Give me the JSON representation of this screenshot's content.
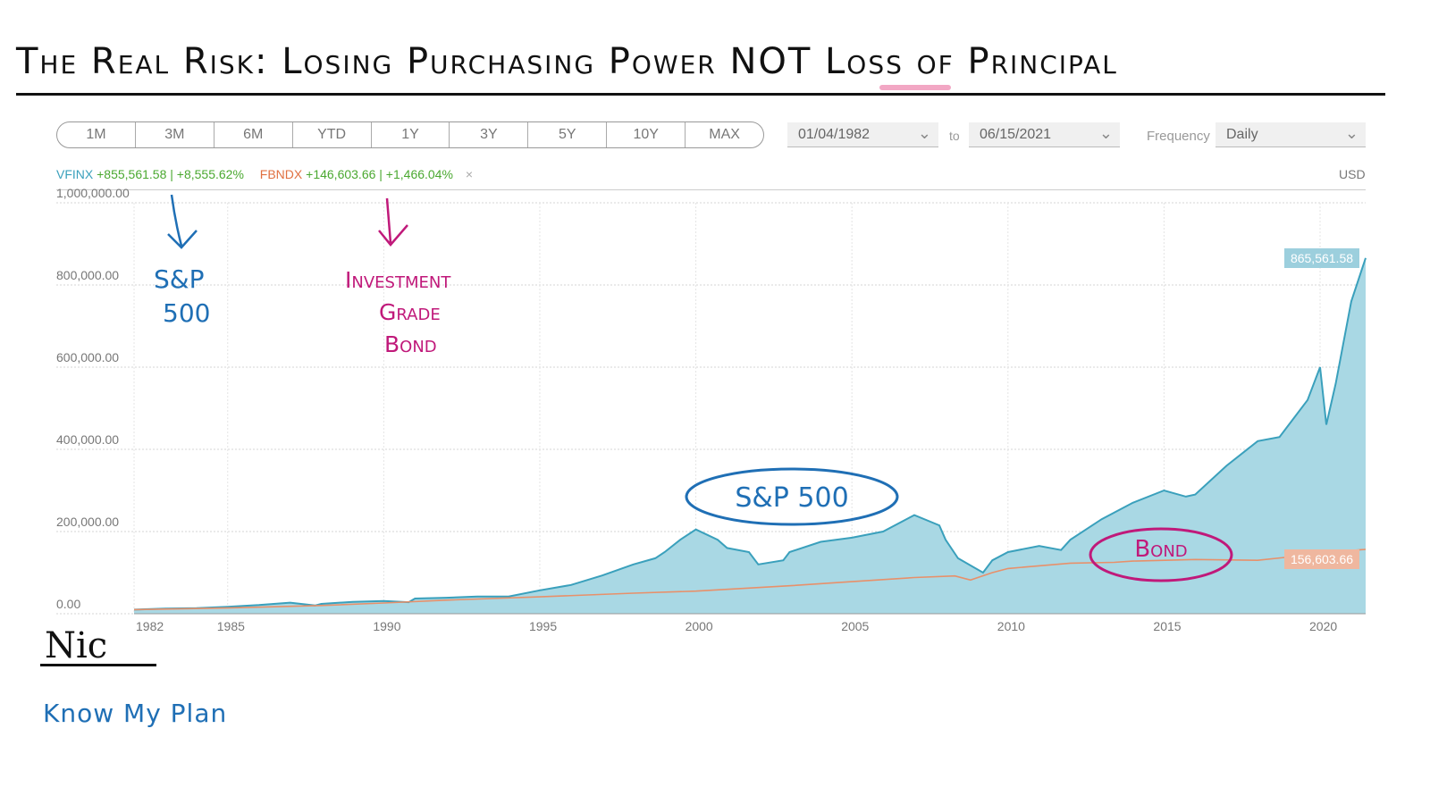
{
  "title": "The Real Risk: Losing Purchasing Power NOT Loss of Principal",
  "controls": {
    "ranges": [
      "1M",
      "3M",
      "6M",
      "YTD",
      "1Y",
      "3Y",
      "5Y",
      "10Y",
      "MAX"
    ],
    "start_date": "01/04/1982",
    "to_label": "to",
    "end_date": "06/15/2021",
    "frequency_label": "Frequency",
    "frequency_value": "Daily"
  },
  "legend": {
    "vfinx_name": "VFINX",
    "vfinx_change": "+855,561.58 | +8,555.62%",
    "fbndx_name": "FBNDX",
    "fbndx_change": "+146,603.66 | +1,466.04%",
    "close_symbol": "×",
    "currency": "USD"
  },
  "annotations": {
    "sp500_arrow_label_1": "S&P",
    "sp500_arrow_label_2": "500",
    "bond_arrow_label_1": "Investment",
    "bond_arrow_label_2": "Grade",
    "bond_arrow_label_3": "Bond",
    "sp500_circle": "S&P 500",
    "bond_circle": "Bond"
  },
  "author": "Nic",
  "brand": "Know My Plan",
  "colors": {
    "vfinx": "#3aa0bc",
    "vfinx_fill": "#a9d8e4",
    "fbndx": "#e8906a",
    "blue_ink": "#1f6fb5",
    "magenta_ink": "#c0197a"
  },
  "chart_data": {
    "type": "area",
    "xlim": [
      1982.0,
      2021.46
    ],
    "ylim": [
      0,
      1000000
    ],
    "y_ticks": [
      0,
      200000,
      400000,
      600000,
      800000,
      1000000
    ],
    "y_tick_labels": [
      "0.00",
      "200,000.00",
      "400,000.00",
      "600,000.00",
      "800,000.00",
      "1,000,000.00"
    ],
    "x_ticks": [
      1982,
      1985,
      1990,
      1995,
      2000,
      2005,
      2010,
      2015,
      2020
    ],
    "x_tick_labels": [
      "1982",
      "1985",
      "1990",
      "1995",
      "2000",
      "2005",
      "2010",
      "2015",
      "2020"
    ],
    "grid": true,
    "series": [
      {
        "name": "VFINX",
        "x": [
          1982,
          1983,
          1984,
          1985,
          1986,
          1987,
          1987.8,
          1988,
          1989,
          1990,
          1990.8,
          1991,
          1992,
          1993,
          1994,
          1995,
          1996,
          1997,
          1998,
          1998.7,
          1999,
          1999.5,
          2000,
          2000.7,
          2001,
          2001.7,
          2002,
          2002.8,
          2003,
          2004,
          2005,
          2006,
          2007,
          2007.8,
          2008,
          2008.4,
          2009.2,
          2009.5,
          2010,
          2011,
          2011.7,
          2012,
          2013,
          2014,
          2015,
          2015.7,
          2016,
          2017,
          2018,
          2018.7,
          2019,
          2019.6,
          2020,
          2020.2,
          2020.5,
          2021,
          2021.46
        ],
        "values": [
          10000,
          12500,
          13500,
          17000,
          21000,
          27000,
          20000,
          24000,
          29000,
          31000,
          28000,
          37000,
          39000,
          42000,
          42000,
          57000,
          70000,
          93000,
          120000,
          135000,
          150000,
          180000,
          205000,
          180000,
          160000,
          150000,
          120000,
          130000,
          150000,
          175000,
          185000,
          200000,
          240000,
          215000,
          180000,
          135000,
          100000,
          130000,
          150000,
          165000,
          155000,
          180000,
          230000,
          270000,
          300000,
          285000,
          290000,
          360000,
          420000,
          430000,
          460000,
          520000,
          600000,
          460000,
          560000,
          760000,
          865561.58
        ]
      },
      {
        "name": "FBNDX",
        "x": [
          1982,
          1985,
          1988,
          1990,
          1992,
          1995,
          1998,
          2000,
          2003,
          2005,
          2007,
          2008.3,
          2008.8,
          2009.5,
          2010,
          2012,
          2013.4,
          2014,
          2016,
          2018,
          2019,
          2020,
          2021.46
        ],
        "values": [
          10000,
          14000,
          20000,
          26000,
          33000,
          41000,
          50000,
          55000,
          68000,
          78000,
          88000,
          92000,
          82000,
          100000,
          110000,
          123000,
          125000,
          128000,
          132000,
          130000,
          138000,
          148000,
          156603.66
        ]
      }
    ],
    "end_labels": {
      "vfinx": "865,561.58",
      "fbndx": "156,603.66"
    }
  }
}
